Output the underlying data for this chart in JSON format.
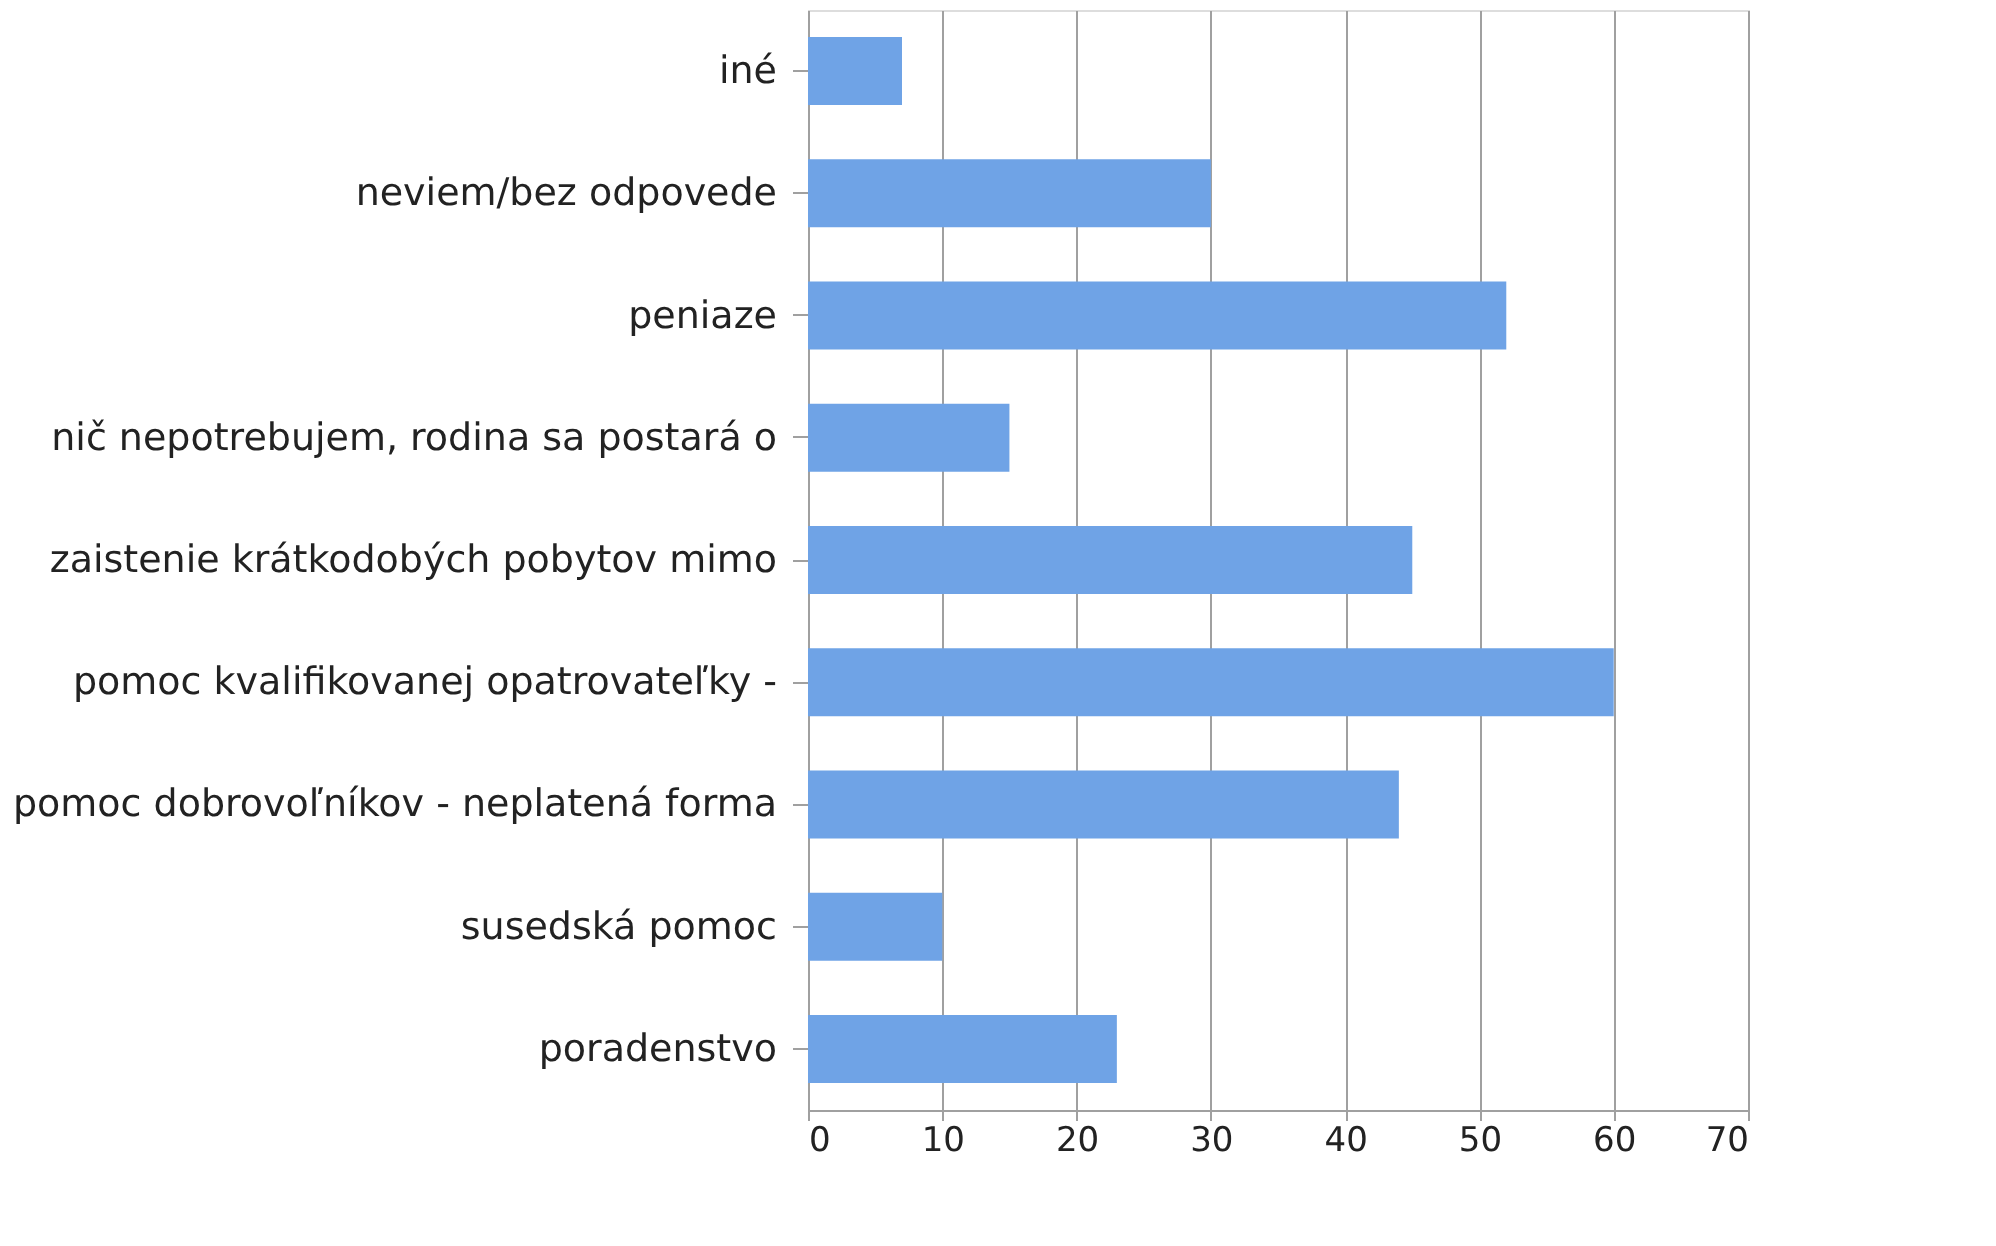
{
  "chart_data": {
    "type": "bar",
    "orientation": "horizontal",
    "categories": [
      "iné",
      "neviem/bez odpovede",
      "peniaze",
      "nič nepotrebujem, rodina sa postará o",
      "zaistenie krátkodobých pobytov mimo",
      "pomoc kvalifikovanej opatrovateľky -",
      "pomoc dobrovoľníkov - neplatená forma",
      "susedská pomoc",
      "poradenstvo"
    ],
    "values": [
      7,
      30,
      52,
      15,
      45,
      60,
      44,
      10,
      23
    ],
    "color": "#6fa3e6",
    "xlim": [
      0,
      70
    ],
    "xticks": [
      0,
      10,
      20,
      30,
      40,
      50,
      60,
      70
    ],
    "grid": "x"
  }
}
